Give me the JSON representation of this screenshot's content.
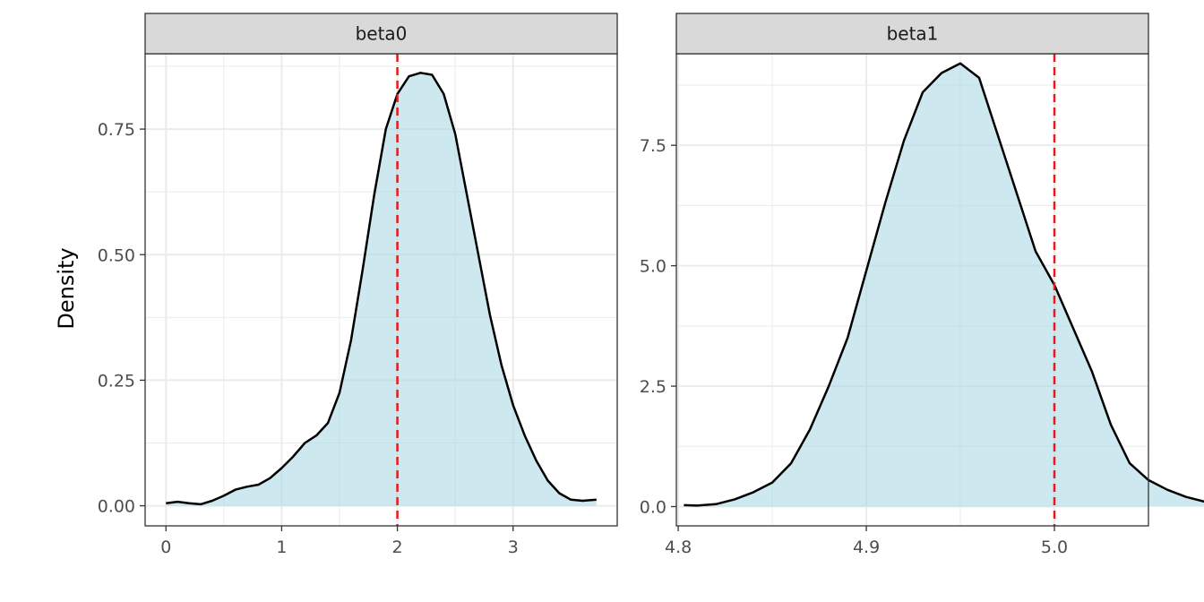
{
  "chart_data": {
    "type": "area",
    "ylabel": "Density",
    "xlabel": "",
    "grid": true,
    "legend": "none",
    "colors": {
      "fill": "#add8e6",
      "line": "#000000",
      "reference": "#e41a1c",
      "strip": "#d9d9d9",
      "grid": "#ebebeb"
    },
    "panels": [
      {
        "strip": "beta0",
        "xlim": [
          -0.18,
          3.9
        ],
        "ylim": [
          -0.04,
          0.9
        ],
        "xticks": [
          0,
          1,
          2,
          3
        ],
        "xtick_labels": [
          "0",
          "1",
          "2",
          "3"
        ],
        "yticks": [
          0,
          0.25,
          0.5,
          0.75
        ],
        "ytick_labels": [
          "0.00",
          "0.25",
          "0.50",
          "0.75"
        ],
        "reference_line": 2,
        "x": [
          0.0,
          0.1,
          0.2,
          0.3,
          0.4,
          0.5,
          0.6,
          0.7,
          0.8,
          0.9,
          1.0,
          1.1,
          1.2,
          1.3,
          1.4,
          1.5,
          1.6,
          1.7,
          1.8,
          1.9,
          2.0,
          2.1,
          2.2,
          2.3,
          2.4,
          2.5,
          2.6,
          2.7,
          2.8,
          2.9,
          3.0,
          3.1,
          3.2,
          3.3,
          3.4,
          3.5,
          3.6,
          3.72
        ],
        "y": [
          0.005,
          0.008,
          0.005,
          0.003,
          0.01,
          0.02,
          0.032,
          0.038,
          0.042,
          0.055,
          0.075,
          0.098,
          0.125,
          0.14,
          0.165,
          0.225,
          0.33,
          0.47,
          0.62,
          0.75,
          0.82,
          0.855,
          0.862,
          0.858,
          0.82,
          0.74,
          0.62,
          0.5,
          0.38,
          0.28,
          0.2,
          0.14,
          0.09,
          0.05,
          0.025,
          0.012,
          0.01,
          0.012
        ]
      },
      {
        "strip": "beta1",
        "xlim": [
          4.799,
          5.05
        ],
        "ylim": [
          -0.4,
          9.4
        ],
        "xticks": [
          4.8,
          4.9,
          5.0
        ],
        "xtick_labels": [
          "4.8",
          "4.9",
          "5.0"
        ],
        "yticks": [
          0,
          2.5,
          5.0,
          7.5
        ],
        "ytick_labels": [
          "0.0",
          "2.5",
          "5.0",
          "7.5"
        ],
        "reference_line": 5.0,
        "x": [
          4.803,
          4.81,
          4.82,
          4.83,
          4.84,
          4.85,
          4.86,
          4.87,
          4.88,
          4.89,
          4.9,
          4.91,
          4.92,
          4.93,
          4.94,
          4.95,
          4.96,
          4.97,
          4.98,
          4.99,
          5.0,
          5.01,
          5.02,
          5.03,
          5.04,
          5.05,
          5.06,
          5.07,
          5.08
        ],
        "y": [
          0.03,
          0.02,
          0.05,
          0.15,
          0.3,
          0.5,
          0.9,
          1.6,
          2.5,
          3.5,
          4.9,
          6.3,
          7.6,
          8.6,
          9.0,
          9.2,
          8.9,
          7.7,
          6.5,
          5.3,
          4.6,
          3.7,
          2.8,
          1.7,
          0.9,
          0.55,
          0.35,
          0.2,
          0.1
        ]
      }
    ]
  }
}
